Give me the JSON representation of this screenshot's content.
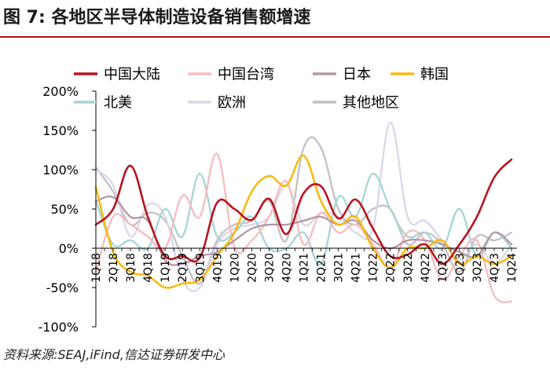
{
  "figure": {
    "label": "图 7:",
    "title": "各地区半导体制造设备销售额增速",
    "source": "资料来源:SEAJ,iFind,信达证券研发中心"
  },
  "colors": {
    "中国大陆": "#b8141e",
    "中国台湾": "#f6bcc0",
    "日本": "#b597a6",
    "韩国": "#f7bb12",
    "北美": "#a7d4d6",
    "欧洲": "#d8d8ea",
    "其他地区": "#c2c2c2",
    "axis": "#000000"
  },
  "chart_data": {
    "type": "line",
    "title": "各地区半导体制造设备销售额增速",
    "xlabel": "",
    "ylabel": "",
    "ylim": [
      -100,
      200
    ],
    "yticks": [
      -100,
      -50,
      0,
      50,
      100,
      150,
      200
    ],
    "ytick_labels": [
      "-100%",
      "-50%",
      "0%",
      "50%",
      "100%",
      "150%",
      "200%"
    ],
    "grid": false,
    "legend_position": "top",
    "x": [
      "1Q18",
      "2Q18",
      "3Q18",
      "4Q18",
      "1Q19",
      "2Q19",
      "3Q19",
      "4Q19",
      "1Q20",
      "2Q20",
      "3Q20",
      "4Q20",
      "1Q21",
      "2Q21",
      "3Q21",
      "4Q21",
      "1Q22",
      "2Q22",
      "3Q22",
      "4Q22",
      "1Q23",
      "2Q23",
      "3Q23",
      "4Q23",
      "1Q24"
    ],
    "xtick_labels": [
      "1Q18",
      "",
      "2Q18",
      "",
      "3Q18",
      "",
      "4Q18",
      "",
      "1Q19",
      "",
      "2Q19",
      "",
      "3Q19",
      "",
      "4Q19",
      "",
      "1Q20",
      "",
      "2Q20",
      "",
      "3Q20",
      "",
      "4Q20",
      "",
      "1Q21",
      "",
      "2Q21",
      "",
      "3Q21",
      "",
      "4Q21",
      "",
      "1Q22",
      "",
      "2Q22",
      "",
      "3Q22",
      "",
      "4Q22",
      "",
      "1Q23",
      "",
      "2Q23",
      "",
      "3Q23",
      "",
      "4Q23",
      "",
      "1Q24"
    ],
    "series": [
      {
        "name": "中国大陆",
        "values": [
          30,
          50,
          105,
          40,
          -10,
          -10,
          -12,
          58,
          50,
          36,
          63,
          18,
          70,
          79,
          38,
          62,
          25,
          -10,
          -8,
          5,
          -20,
          5,
          40,
          90,
          113
        ]
      },
      {
        "name": "中国台湾",
        "values": [
          -30,
          40,
          30,
          15,
          0,
          67,
          40,
          120,
          2,
          10,
          40,
          85,
          5,
          45,
          20,
          30,
          5,
          -25,
          20,
          10,
          -40,
          -10,
          10,
          -60,
          -68
        ]
      },
      {
        "name": "日本",
        "values": [
          60,
          65,
          40,
          35,
          -15,
          -20,
          -10,
          -5,
          10,
          25,
          30,
          30,
          35,
          40,
          30,
          35,
          10,
          0,
          10,
          10,
          5,
          -5,
          -10,
          20,
          5
        ]
      },
      {
        "name": "韩国",
        "values": [
          78,
          -5,
          -30,
          -35,
          -50,
          -45,
          -40,
          -10,
          20,
          72,
          92,
          80,
          118,
          60,
          30,
          40,
          0,
          -25,
          0,
          0,
          10,
          -20,
          -10,
          -20,
          -10
        ]
      },
      {
        "name": "北美",
        "values": [
          60,
          5,
          10,
          0,
          50,
          15,
          95,
          15,
          20,
          40,
          0,
          0,
          20,
          -20,
          65,
          40,
          95,
          50,
          15,
          20,
          0,
          50,
          -10,
          20,
          0
        ]
      },
      {
        "name": "欧洲",
        "values": [
          100,
          80,
          15,
          55,
          40,
          -40,
          -50,
          5,
          25,
          30,
          40,
          80,
          30,
          45,
          40,
          20,
          25,
          160,
          40,
          35,
          10,
          -15,
          5,
          -20,
          5
        ]
      },
      {
        "name": "其他地区",
        "values": [
          103,
          72,
          30,
          45,
          35,
          -10,
          -45,
          10,
          30,
          35,
          60,
          10,
          128,
          128,
          50,
          30,
          50,
          50,
          5,
          20,
          5,
          -30,
          15,
          10,
          20
        ]
      }
    ]
  }
}
